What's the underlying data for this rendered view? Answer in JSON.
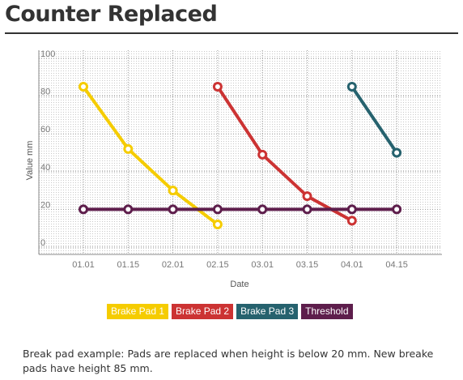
{
  "page": {
    "title": "Counter Replaced",
    "caption": "Break pad example: Pads are replaced when height is below 20 mm. New breake pads have height 85 mm."
  },
  "chart_data": {
    "type": "line",
    "xlabel": "Date",
    "ylabel": "Value mm",
    "ylim": [
      0,
      100
    ],
    "yticks": [
      0,
      20,
      40,
      60,
      80,
      100
    ],
    "categories": [
      "01.01",
      "01.15",
      "02.01",
      "02.15",
      "03.01",
      "03.15",
      "04.01",
      "04.15"
    ],
    "grid": true,
    "legend_position": "bottom",
    "series": [
      {
        "name": "Brake Pad 1",
        "color": "#f5cc00",
        "x": [
          "01.01",
          "01.15",
          "02.01",
          "02.15"
        ],
        "y": [
          85,
          52,
          30,
          12
        ]
      },
      {
        "name": "Brake Pad 2",
        "color": "#cc3333",
        "x": [
          "02.15",
          "03.01",
          "03.15",
          "04.01"
        ],
        "y": [
          85,
          49,
          27,
          14
        ]
      },
      {
        "name": "Brake Pad 3",
        "color": "#26626e",
        "x": [
          "04.01",
          "04.15"
        ],
        "y": [
          85,
          50
        ]
      },
      {
        "name": "Threshold",
        "color": "#5e1e4c",
        "x": [
          "01.01",
          "01.15",
          "02.01",
          "02.15",
          "03.01",
          "03.15",
          "04.01",
          "04.15"
        ],
        "y": [
          20,
          20,
          20,
          20,
          20,
          20,
          20,
          20
        ]
      }
    ]
  }
}
